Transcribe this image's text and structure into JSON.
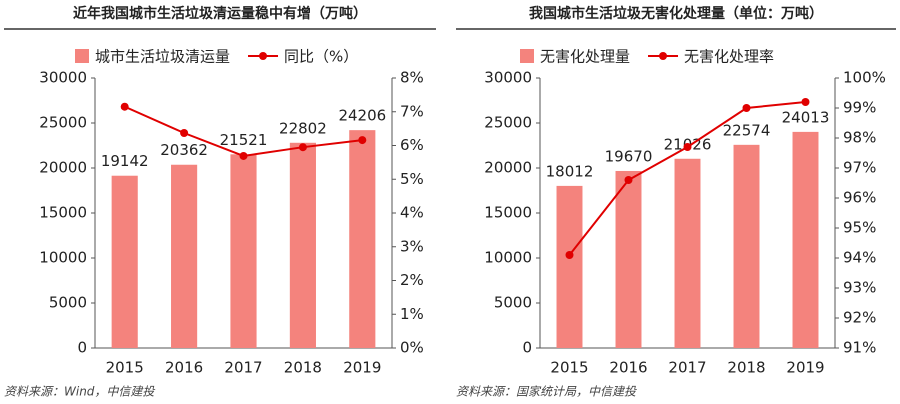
{
  "chart_data": [
    {
      "type": "bar",
      "title": "近年我国城市生活垃圾清运量稳中有增（万吨）",
      "categories": [
        "2015",
        "2016",
        "2017",
        "2018",
        "2019"
      ],
      "series": [
        {
          "name": "城市生活垃圾清运量",
          "type": "bar",
          "color": "#f4837d",
          "values": [
            19142,
            20362,
            21521,
            22802,
            24206
          ]
        },
        {
          "name": "同比（%）",
          "type": "line",
          "axis": "y2",
          "color": "#e00000",
          "values": [
            7.15,
            6.37,
            5.69,
            5.95,
            6.16
          ]
        }
      ],
      "ylim": [
        0,
        30000
      ],
      "yticks": [
        0,
        5000,
        10000,
        15000,
        20000,
        25000,
        30000
      ],
      "y2lim": [
        0,
        8
      ],
      "y2ticks": [
        {
          "value": 0,
          "label": "0%"
        },
        {
          "value": 1,
          "label": "1%"
        },
        {
          "value": 2,
          "label": "2%"
        },
        {
          "value": 3,
          "label": "3%"
        },
        {
          "value": 4,
          "label": "4%"
        },
        {
          "value": 5,
          "label": "5%"
        },
        {
          "value": 6,
          "label": "6%"
        },
        {
          "value": 7,
          "label": "7%"
        },
        {
          "value": 8,
          "label": "8%"
        }
      ],
      "source": "资料来源：Wind，中信建投"
    },
    {
      "type": "bar",
      "title": "我国城市生活垃圾无害化处理量（单位：万吨）",
      "categories": [
        "2015",
        "2016",
        "2017",
        "2018",
        "2019"
      ],
      "series": [
        {
          "name": "无害化处理量",
          "type": "bar",
          "color": "#f4837d",
          "values": [
            18012,
            19670,
            21026,
            22574,
            24013
          ]
        },
        {
          "name": "无害化处理率",
          "type": "line",
          "axis": "y2",
          "color": "#e00000",
          "values": [
            94.1,
            96.6,
            97.7,
            99.0,
            99.2
          ]
        }
      ],
      "ylim": [
        0,
        30000
      ],
      "yticks": [
        0,
        5000,
        10000,
        15000,
        20000,
        25000,
        30000
      ],
      "y2lim": [
        91,
        100
      ],
      "y2ticks": [
        {
          "value": 91,
          "label": "91%"
        },
        {
          "value": 92,
          "label": "92%"
        },
        {
          "value": 93,
          "label": "93%"
        },
        {
          "value": 94,
          "label": "94%"
        },
        {
          "value": 95,
          "label": "95%"
        },
        {
          "value": 96,
          "label": "96%"
        },
        {
          "value": 97,
          "label": "97%"
        },
        {
          "value": 98,
          "label": "98%"
        },
        {
          "value": 99,
          "label": "99%"
        },
        {
          "value": 100,
          "label": "100%"
        }
      ],
      "source": "资料来源：国家统计局，中信建投"
    }
  ]
}
